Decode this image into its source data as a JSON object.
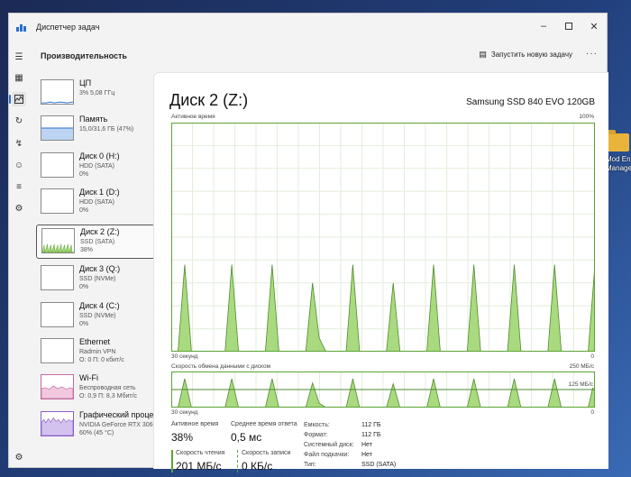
{
  "desktop": {
    "icon_label_1": "Mod Engi",
    "icon_label_2": "Manage"
  },
  "window": {
    "title": "Диспетчер задач"
  },
  "header": {
    "section_title": "Производительность",
    "run_task_label": "Запустить новую задачу",
    "more_label": "···"
  },
  "sidebar": {
    "items": [
      {
        "name": "ЦП",
        "sub1": "3%  5,08 ГГц",
        "sub2": "",
        "icon": "cpu-graph"
      },
      {
        "name": "Память",
        "sub1": "15,0/31,6 ГБ (47%)",
        "sub2": "",
        "icon": "memory-graph"
      },
      {
        "name": "Диск 0 (H:)",
        "sub1": "HDD (SATA)",
        "sub2": "0%",
        "icon": "disk-graph"
      },
      {
        "name": "Диск 1 (D:)",
        "sub1": "HDD (SATA)",
        "sub2": "0%",
        "icon": "disk-graph"
      },
      {
        "name": "Диск 2 (Z:)",
        "sub1": "SSD (SATA)",
        "sub2": "38%",
        "icon": "disk-graph"
      },
      {
        "name": "Диск 3 (Q:)",
        "sub1": "SSD (NVMe)",
        "sub2": "0%",
        "icon": "disk-graph"
      },
      {
        "name": "Диск 4 (C:)",
        "sub1": "SSD (NVMe)",
        "sub2": "0%",
        "icon": "disk-graph"
      },
      {
        "name": "Ethernet",
        "sub1": "Radmin VPN",
        "sub2": "О: 0 П: 0 кбит/с",
        "icon": "ethernet-graph"
      },
      {
        "name": "Wi-Fi",
        "sub1": "Беспроводная сеть",
        "sub2": "О: 0,9  П: 8,3 Мбит/с",
        "icon": "wifi-graph"
      },
      {
        "name": "Графический проце",
        "sub1": "NVIDIA GeForce RTX 3060",
        "sub2": "60% (45 °C)",
        "icon": "gpu-graph"
      }
    ]
  },
  "main": {
    "title": "Диск 2 (Z:)",
    "model": "Samsung SSD 840 EVO 120GB",
    "active_time_label": "Активное время",
    "active_time_max": "100%",
    "time_span_label": "30 секунд",
    "active_time_min": "0",
    "transfer_label": "Скорость обмена данными с диском",
    "transfer_max": "250 МБ/с",
    "transfer_mid": "125 МБ/с",
    "transfer_time_label": "30 секунд",
    "transfer_min": "0"
  },
  "stats": {
    "active_time_label": "Активное время",
    "active_time_value": "38%",
    "response_label": "Среднее время ответа",
    "response_value": "0,5 мс",
    "read_label": "Скорость чтения",
    "read_value": "201 МБ/с",
    "write_label": "Скорость записи",
    "write_value": "0 КБ/с"
  },
  "properties": [
    {
      "label": "Емкость:",
      "value": "112 ГБ"
    },
    {
      "label": "Формат:",
      "value": "112 ГБ"
    },
    {
      "label": "Системный диск:",
      "value": "Нет"
    },
    {
      "label": "Файл подкачки:",
      "value": "Нет"
    },
    {
      "label": "Тип:",
      "value": "SSD (SATA)"
    }
  ],
  "chart_data": [
    {
      "type": "area",
      "title": "Активное время",
      "xlabel": "30 секунд",
      "ylim": [
        0,
        100
      ],
      "unit": "%",
      "grid": true,
      "series": [
        {
          "values": [
            0,
            0,
            38,
            0,
            0,
            0,
            0,
            0,
            0,
            38,
            0,
            0,
            0,
            0,
            0,
            38,
            0,
            0,
            0,
            0,
            0,
            30,
            6,
            0,
            0,
            0,
            0,
            38,
            0,
            0,
            0,
            0,
            0,
            30,
            0,
            0,
            0,
            0,
            0,
            38,
            0,
            0,
            0,
            0,
            0,
            38,
            0,
            0,
            0,
            0,
            0,
            38,
            0,
            0,
            0,
            0,
            0,
            38,
            0,
            0,
            0,
            0,
            0,
            38
          ]
        }
      ],
      "color": "#9bd468"
    },
    {
      "type": "area",
      "title": "Скорость обмена данными с диском",
      "xlabel": "30 секунд",
      "ylim": [
        0,
        250
      ],
      "unit": "МБ/с",
      "reference_line": 125,
      "grid": true,
      "series": [
        {
          "values": [
            0,
            0,
            200,
            0,
            0,
            0,
            0,
            0,
            0,
            200,
            0,
            0,
            0,
            0,
            0,
            200,
            0,
            0,
            0,
            0,
            0,
            170,
            30,
            0,
            0,
            0,
            0,
            200,
            0,
            0,
            0,
            0,
            0,
            165,
            0,
            0,
            0,
            0,
            0,
            200,
            0,
            0,
            0,
            0,
            0,
            200,
            0,
            0,
            0,
            0,
            0,
            200,
            0,
            0,
            0,
            0,
            0,
            200,
            0,
            0,
            0,
            0,
            0,
            200
          ]
        }
      ],
      "color": "#9bd468"
    }
  ]
}
